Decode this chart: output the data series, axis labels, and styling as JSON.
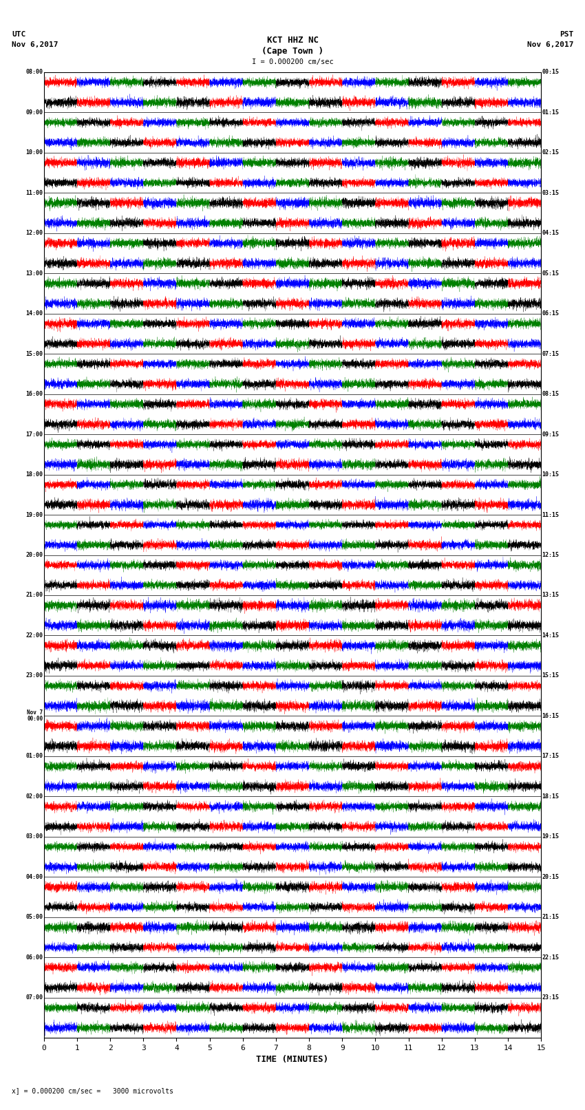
{
  "title_line1": "KCT HHZ NC",
  "title_line2": "(Cape Town )",
  "scale_text": "I = 0.000200 cm/sec",
  "left_label_top": "UTC",
  "left_label_date": "Nov 6,2017",
  "right_label_top": "PST",
  "right_label_date": "Nov 6,2017",
  "bottom_label": "TIME (MINUTES)",
  "bottom_note": "x] = 0.000200 cm/sec =   3000 microvolts",
  "utc_times": [
    "08:00",
    "09:00",
    "10:00",
    "11:00",
    "12:00",
    "13:00",
    "14:00",
    "15:00",
    "16:00",
    "17:00",
    "18:00",
    "19:00",
    "20:00",
    "21:00",
    "22:00",
    "23:00",
    "Nov 7\n00:00",
    "01:00",
    "02:00",
    "03:00",
    "04:00",
    "05:00",
    "06:00",
    "07:00"
  ],
  "pst_times": [
    "00:15",
    "01:15",
    "02:15",
    "03:15",
    "04:15",
    "05:15",
    "06:15",
    "07:15",
    "08:15",
    "09:15",
    "10:15",
    "11:15",
    "12:15",
    "13:15",
    "14:15",
    "15:15",
    "16:15",
    "17:15",
    "18:15",
    "19:15",
    "20:15",
    "21:15",
    "22:15",
    "23:15"
  ],
  "num_rows": 24,
  "num_minutes": 15,
  "samples_per_minute": 600,
  "sub_rows": 2,
  "colors": [
    "red",
    "blue",
    "green",
    "black"
  ],
  "bg_color": "white",
  "trace_amplitude": 0.42,
  "linewidth": 0.2,
  "seed": 42
}
